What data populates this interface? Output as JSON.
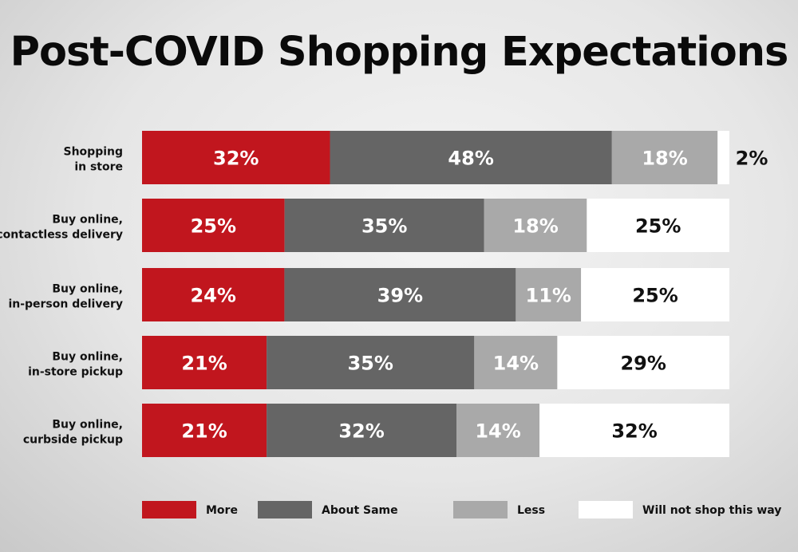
{
  "chart_data": {
    "type": "bar",
    "stacked": true,
    "orientation": "horizontal",
    "title": "Post-COVID Shopping Expectations",
    "categories": [
      [
        "Shopping",
        "in store"
      ],
      [
        "Buy online,",
        "contactless delivery"
      ],
      [
        "Buy online,",
        "in-person delivery"
      ],
      [
        "Buy online,",
        "in-store pickup"
      ],
      [
        "Buy online,",
        "curbside pickup"
      ]
    ],
    "series": [
      {
        "name": "More",
        "color": "#c1161e",
        "values": [
          32,
          25,
          24,
          21,
          21
        ]
      },
      {
        "name": "About Same",
        "color": "#656565",
        "values": [
          48,
          35,
          39,
          35,
          32
        ]
      },
      {
        "name": "Less",
        "color": "#a9a9a9",
        "values": [
          18,
          18,
          11,
          14,
          14
        ]
      },
      {
        "name": "Will not shop this way",
        "color": "#ffffff",
        "values": [
          2,
          25,
          25,
          29,
          32
        ]
      }
    ],
    "value_suffix": "%",
    "legend_position": "bottom"
  }
}
